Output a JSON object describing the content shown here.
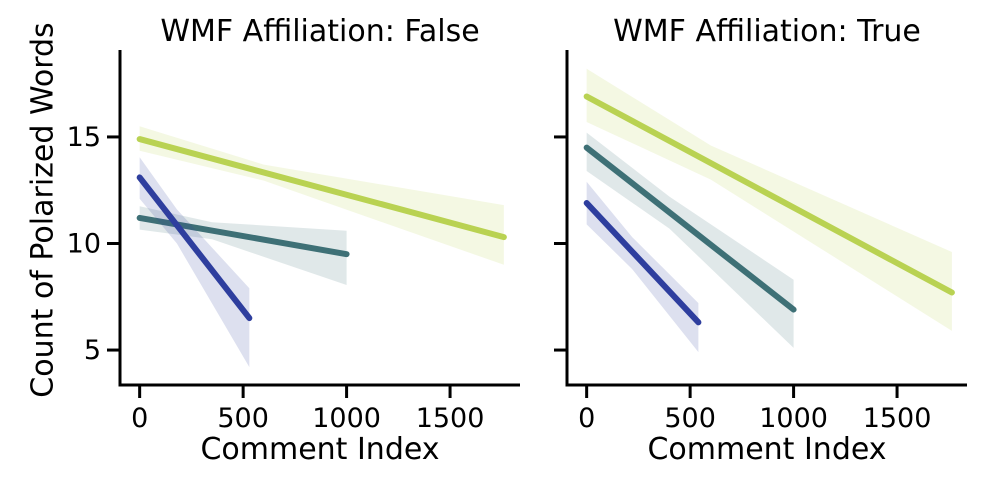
{
  "figure": {
    "ylabel": "Count of Polarized Words",
    "background": "#ffffff",
    "text_color": "#000000",
    "axis_color": "#000000"
  },
  "chart_data": [
    {
      "type": "line",
      "title": "WMF Affiliation: False",
      "xlabel": "Comment Index",
      "ylabel": "Count of Polarized Words",
      "xlim": [
        -95,
        1838
      ],
      "ylim": [
        3.36,
        19.08
      ],
      "xticks": [
        0,
        500,
        1000,
        1500
      ],
      "yticks": [
        5,
        10,
        15
      ],
      "show_ytick_labels": true,
      "grid": false,
      "legend": "none",
      "series": [
        {
          "name": "regression-green",
          "color": "#b9d252",
          "line": {
            "x": [
              0,
              1760
            ],
            "y": [
              14.9,
              10.3
            ]
          },
          "band": {
            "x": [
              0,
              600,
              1760
            ],
            "upper": [
              15.5,
              13.7,
              11.8
            ],
            "lower": [
              14.35,
              12.95,
              9.0
            ]
          }
        },
        {
          "name": "regression-teal",
          "color": "#3e7076",
          "line": {
            "x": [
              0,
              1000
            ],
            "y": [
              11.2,
              9.5
            ]
          },
          "band": {
            "x": [
              0,
              350,
              1000
            ],
            "upper": [
              11.75,
              11.0,
              10.6
            ],
            "lower": [
              10.65,
              10.2,
              8.05
            ]
          }
        },
        {
          "name": "regression-blue",
          "color": "#2e3e9e",
          "line": {
            "x": [
              0,
              530
            ],
            "y": [
              13.1,
              6.5
            ]
          },
          "band": {
            "x": [
              0,
              180,
              530
            ],
            "upper": [
              14.05,
              11.6,
              7.9
            ],
            "lower": [
              12.1,
              10.0,
              4.2
            ]
          }
        }
      ]
    },
    {
      "type": "line",
      "title": "WMF Affiliation: True",
      "xlabel": "Comment Index",
      "ylabel": "Count of Polarized Words",
      "xlim": [
        -95,
        1838
      ],
      "ylim": [
        3.36,
        19.08
      ],
      "xticks": [
        0,
        500,
        1000,
        1500
      ],
      "yticks": [
        5,
        10,
        15
      ],
      "show_ytick_labels": false,
      "grid": false,
      "legend": "none",
      "series": [
        {
          "name": "regression-green",
          "color": "#b9d252",
          "line": {
            "x": [
              0,
              1765
            ],
            "y": [
              16.9,
              7.7
            ]
          },
          "band": {
            "x": [
              0,
              600,
              1765
            ],
            "upper": [
              18.2,
              14.6,
              9.6
            ],
            "lower": [
              15.7,
              13.0,
              5.9
            ]
          }
        },
        {
          "name": "regression-teal",
          "color": "#3e7076",
          "line": {
            "x": [
              0,
              1000
            ],
            "y": [
              14.5,
              6.9
            ]
          },
          "band": {
            "x": [
              0,
              400,
              1000
            ],
            "upper": [
              15.2,
              12.2,
              8.3
            ],
            "lower": [
              13.4,
              10.7,
              5.1
            ]
          }
        },
        {
          "name": "regression-blue",
          "color": "#2e3e9e",
          "line": {
            "x": [
              0,
              540
            ],
            "y": [
              11.9,
              6.3
            ]
          },
          "band": {
            "x": [
              0,
              220,
              540
            ],
            "upper": [
              12.9,
              10.3,
              7.2
            ],
            "lower": [
              10.9,
              8.8,
              4.9
            ]
          }
        }
      ]
    }
  ]
}
